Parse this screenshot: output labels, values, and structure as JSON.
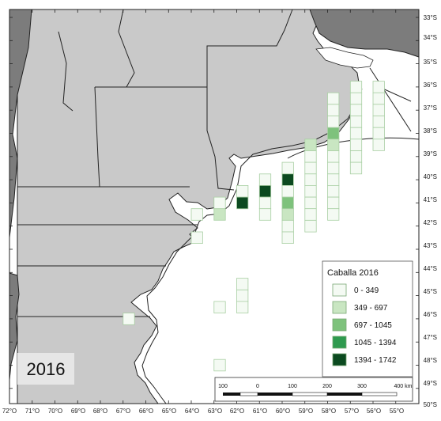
{
  "map": {
    "year_label": "2016",
    "lon_ticks": [
      "72°O",
      "71°O",
      "70°O",
      "69°O",
      "68°O",
      "67°O",
      "66°O",
      "65°O",
      "64°O",
      "63°O",
      "62°O",
      "61°O",
      "60°O",
      "59°O",
      "58°O",
      "57°O",
      "56°O",
      "55°O"
    ],
    "lat_ticks": [
      "33°S",
      "34°S",
      "35°S",
      "36°S",
      "37°S",
      "38°S",
      "39°S",
      "40°S",
      "41°S",
      "42°S",
      "43°S",
      "44°S",
      "45°S",
      "46°S",
      "47°S",
      "48°S",
      "49°S",
      "50°S"
    ],
    "scale_labels": [
      "100",
      "0",
      "100",
      "200",
      "300",
      "400 km"
    ],
    "colors": {
      "ocean": "#ffffff",
      "argentina": "#c9c9c9",
      "chile": "#7c7c7c",
      "uruguay": "#7c7c7c",
      "border": "#222222",
      "grid_outline": "#a9cfa3"
    }
  },
  "legend": {
    "title": "Caballa 2016",
    "classes": [
      {
        "label": "0 - 349",
        "color": "#f4faf3"
      },
      {
        "label": "349 - 697",
        "color": "#c9e6c2"
      },
      {
        "label": "697 - 1045",
        "color": "#7ec27c"
      },
      {
        "label": "1045 - 1394",
        "color": "#2f9a4f"
      },
      {
        "label": "1394 - 1742",
        "color": "#0c4a20"
      }
    ]
  },
  "catch_cells": [
    {
      "lon": -56.5,
      "lat": -36.0,
      "class": 0
    },
    {
      "lon": -55.5,
      "lat": -36.0,
      "class": 0
    },
    {
      "lon": -57.5,
      "lat": -36.5,
      "class": 0
    },
    {
      "lon": -56.5,
      "lat": -36.5,
      "class": 0
    },
    {
      "lon": -55.5,
      "lat": -36.5,
      "class": 0
    },
    {
      "lon": -57.5,
      "lat": -37.0,
      "class": 0
    },
    {
      "lon": -56.5,
      "lat": -37.0,
      "class": 0
    },
    {
      "lon": -55.5,
      "lat": -37.0,
      "class": 0
    },
    {
      "lon": -57.5,
      "lat": -37.5,
      "class": 0
    },
    {
      "lon": -56.5,
      "lat": -37.5,
      "class": 0
    },
    {
      "lon": -55.5,
      "lat": -37.5,
      "class": 0
    },
    {
      "lon": -57.5,
      "lat": -38.0,
      "class": 2
    },
    {
      "lon": -56.5,
      "lat": -38.0,
      "class": 0
    },
    {
      "lon": -55.5,
      "lat": -38.0,
      "class": 0
    },
    {
      "lon": -58.5,
      "lat": -38.5,
      "class": 1
    },
    {
      "lon": -57.5,
      "lat": -38.5,
      "class": 1
    },
    {
      "lon": -56.5,
      "lat": -38.5,
      "class": 0
    },
    {
      "lon": -55.5,
      "lat": -38.5,
      "class": 0
    },
    {
      "lon": -58.5,
      "lat": -39.0,
      "class": 0
    },
    {
      "lon": -57.5,
      "lat": -39.0,
      "class": 0
    },
    {
      "lon": -56.5,
      "lat": -39.0,
      "class": 0
    },
    {
      "lon": -59.5,
      "lat": -39.5,
      "class": 0
    },
    {
      "lon": -58.5,
      "lat": -39.5,
      "class": 0
    },
    {
      "lon": -57.5,
      "lat": -39.5,
      "class": 0
    },
    {
      "lon": -56.5,
      "lat": -39.5,
      "class": 0
    },
    {
      "lon": -60.5,
      "lat": -40.0,
      "class": 0
    },
    {
      "lon": -59.5,
      "lat": -40.0,
      "class": 4
    },
    {
      "lon": -58.5,
      "lat": -40.0,
      "class": 0
    },
    {
      "lon": -57.5,
      "lat": -40.0,
      "class": 0
    },
    {
      "lon": -61.5,
      "lat": -40.5,
      "class": 0
    },
    {
      "lon": -60.5,
      "lat": -40.5,
      "class": 4
    },
    {
      "lon": -59.5,
      "lat": -40.5,
      "class": 0
    },
    {
      "lon": -58.5,
      "lat": -40.5,
      "class": 0
    },
    {
      "lon": -57.5,
      "lat": -40.5,
      "class": 0
    },
    {
      "lon": -62.5,
      "lat": -41.0,
      "class": 0
    },
    {
      "lon": -61.5,
      "lat": -41.0,
      "class": 4
    },
    {
      "lon": -60.5,
      "lat": -41.0,
      "class": 0
    },
    {
      "lon": -59.5,
      "lat": -41.0,
      "class": 2
    },
    {
      "lon": -58.5,
      "lat": -41.0,
      "class": 0
    },
    {
      "lon": -57.5,
      "lat": -41.0,
      "class": 0
    },
    {
      "lon": -63.5,
      "lat": -41.5,
      "class": 0
    },
    {
      "lon": -62.5,
      "lat": -41.5,
      "class": 1
    },
    {
      "lon": -60.5,
      "lat": -41.5,
      "class": 0
    },
    {
      "lon": -59.5,
      "lat": -41.5,
      "class": 1
    },
    {
      "lon": -58.5,
      "lat": -41.5,
      "class": 0
    },
    {
      "lon": -57.5,
      "lat": -41.5,
      "class": 0
    },
    {
      "lon": -59.5,
      "lat": -42.0,
      "class": 0
    },
    {
      "lon": -58.5,
      "lat": -42.0,
      "class": 0
    },
    {
      "lon": -63.5,
      "lat": -42.5,
      "class": 0
    },
    {
      "lon": -59.5,
      "lat": -42.5,
      "class": 0
    },
    {
      "lon": -61.5,
      "lat": -44.5,
      "class": 0
    },
    {
      "lon": -61.5,
      "lat": -45.0,
      "class": 0
    },
    {
      "lon": -62.5,
      "lat": -45.5,
      "class": 0
    },
    {
      "lon": -61.5,
      "lat": -45.5,
      "class": 0
    },
    {
      "lon": -66.5,
      "lat": -46.0,
      "class": 0
    },
    {
      "lon": -62.5,
      "lat": -48.0,
      "class": 0
    }
  ]
}
